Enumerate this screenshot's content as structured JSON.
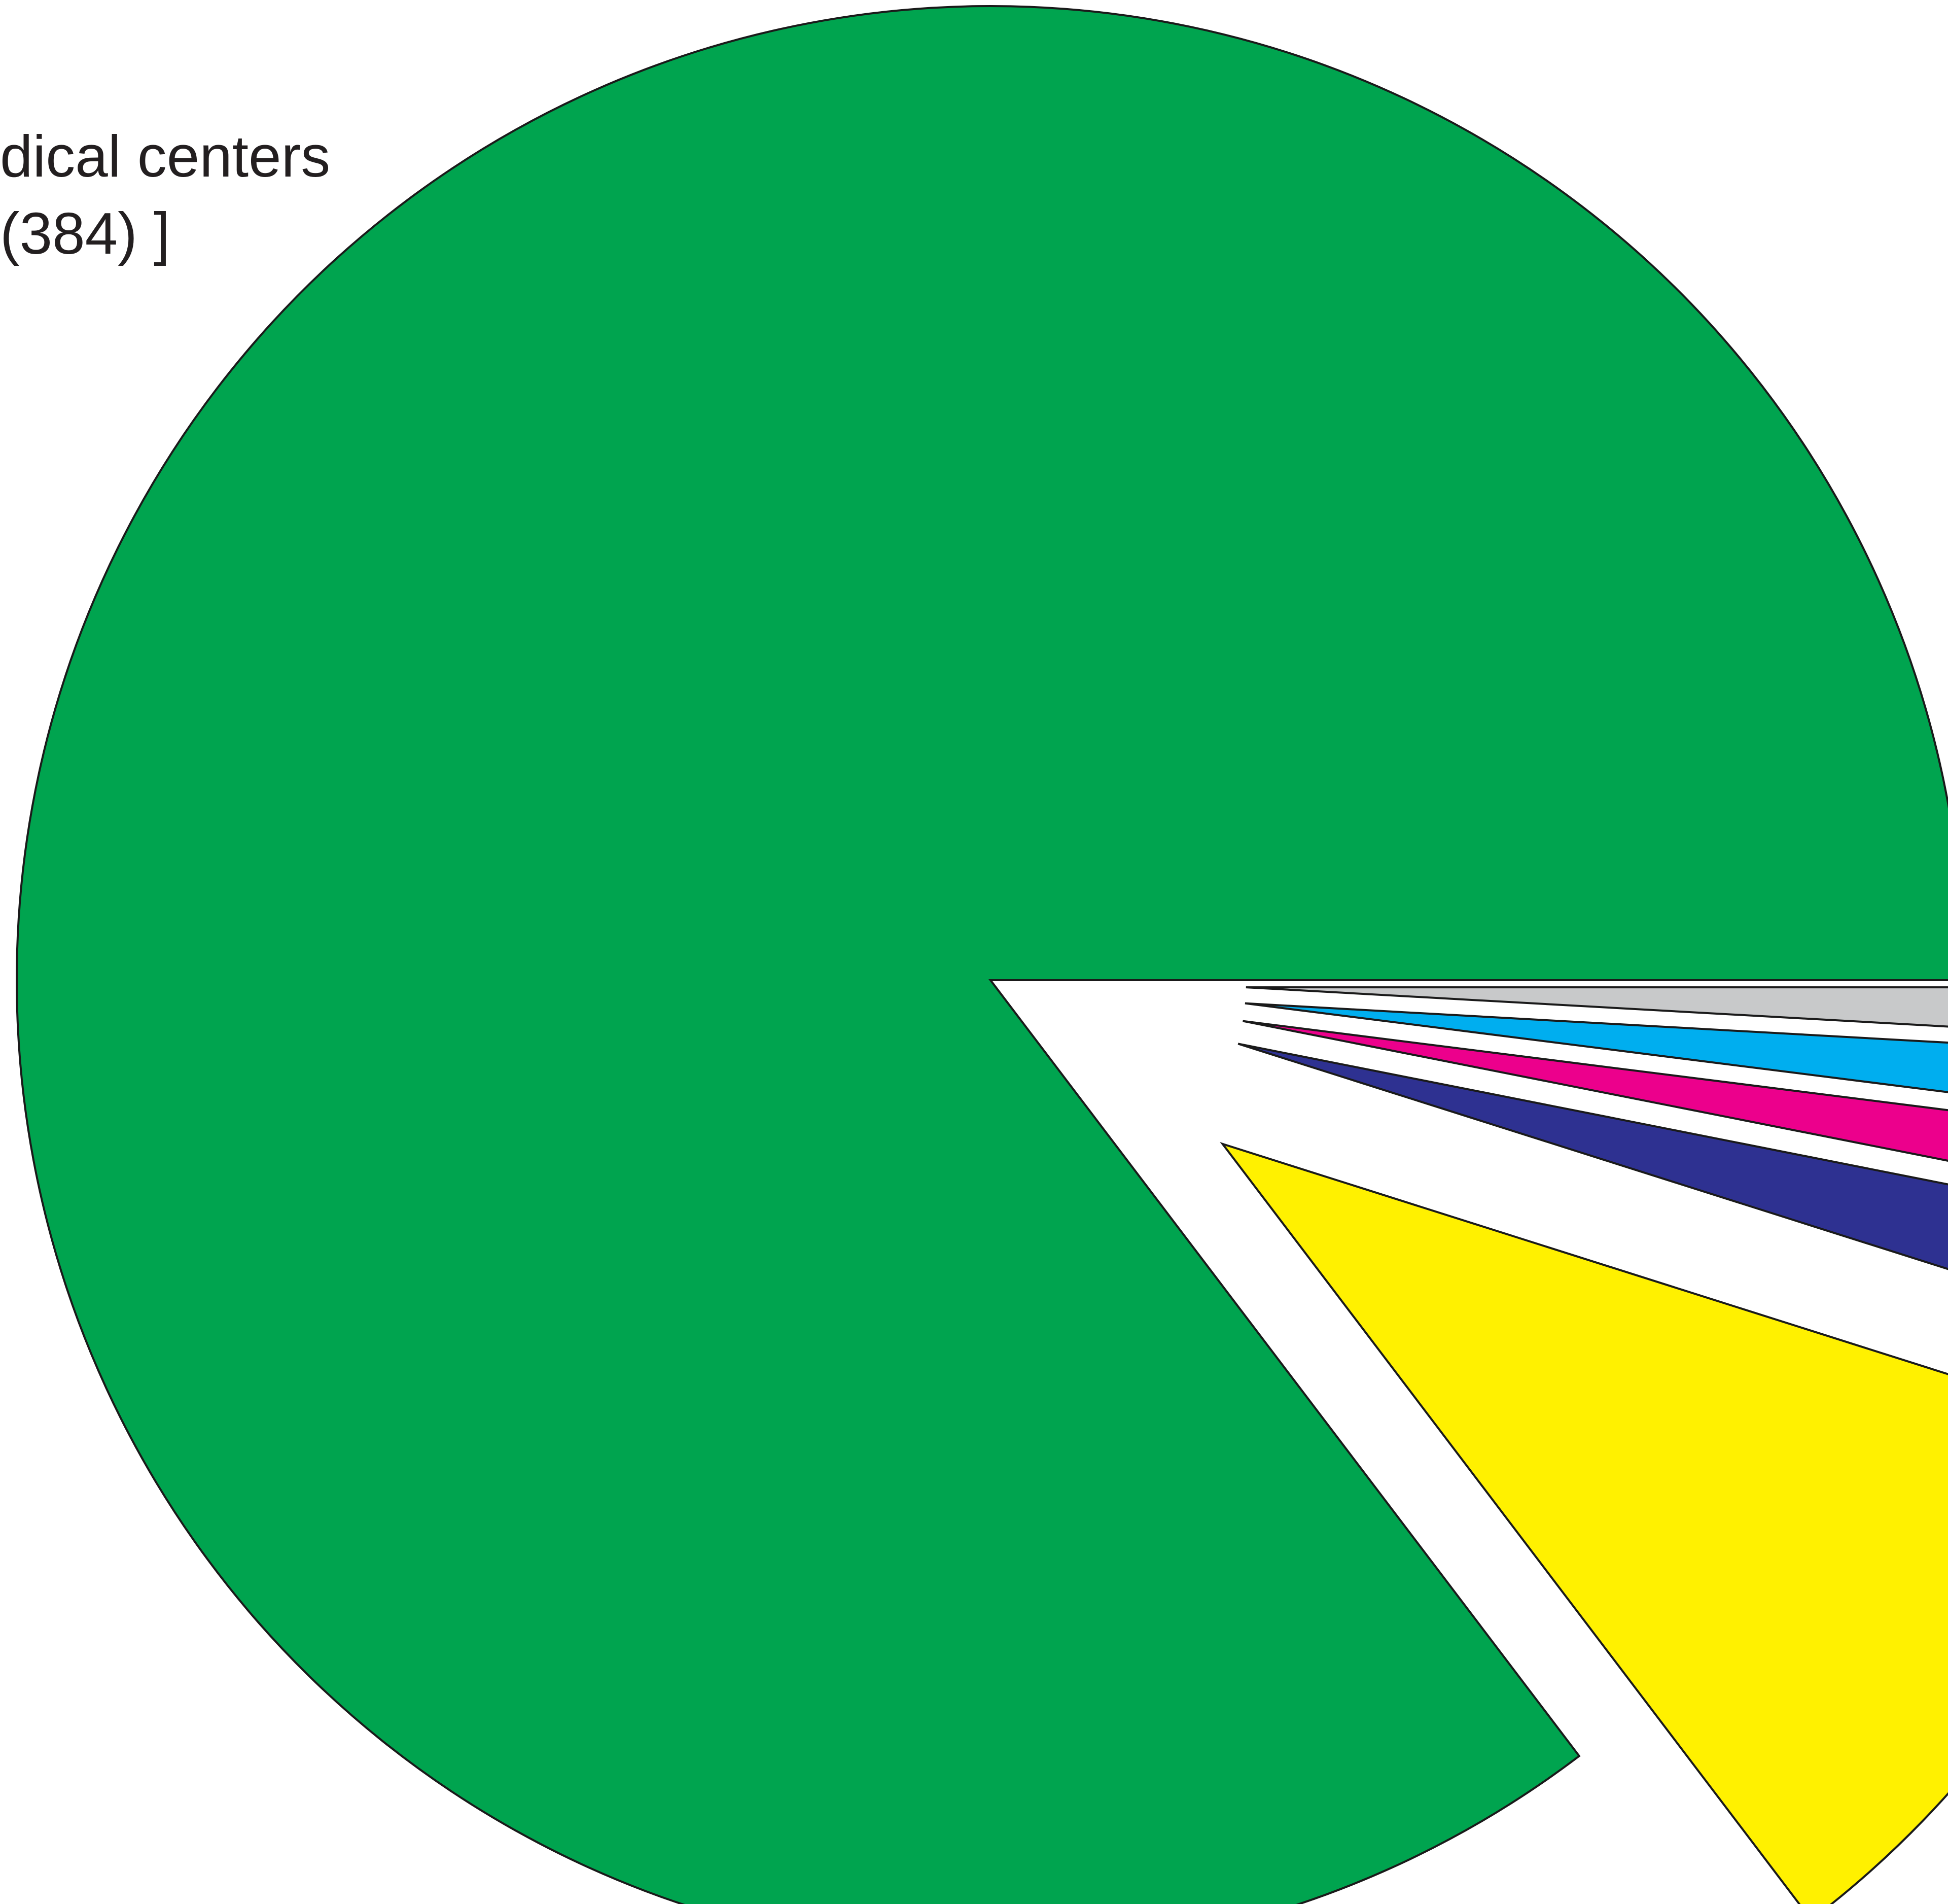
{
  "chart_data": {
    "type": "pie",
    "title": "",
    "slices": [
      {
        "label_lines": [
          "dical centers",
          "(384) ]"
        ],
        "value": 384,
        "color": "#00A44F",
        "exploded": false
      },
      {
        "label_lines": [],
        "value": 44,
        "color": "#FFF100",
        "exploded": true
      },
      {
        "label_lines": [],
        "value": 8,
        "color": "#2E3191",
        "exploded": true
      },
      {
        "label_lines": [],
        "value": 5,
        "color": "#EC008C",
        "exploded": true
      },
      {
        "label_lines": [],
        "value": 5,
        "color": "#00AEEF",
        "exploded": true
      },
      {
        "label_lines": [],
        "value": 4,
        "color": "#C8C9CA",
        "exploded": true
      }
    ],
    "legend": "none",
    "grid": false
  }
}
